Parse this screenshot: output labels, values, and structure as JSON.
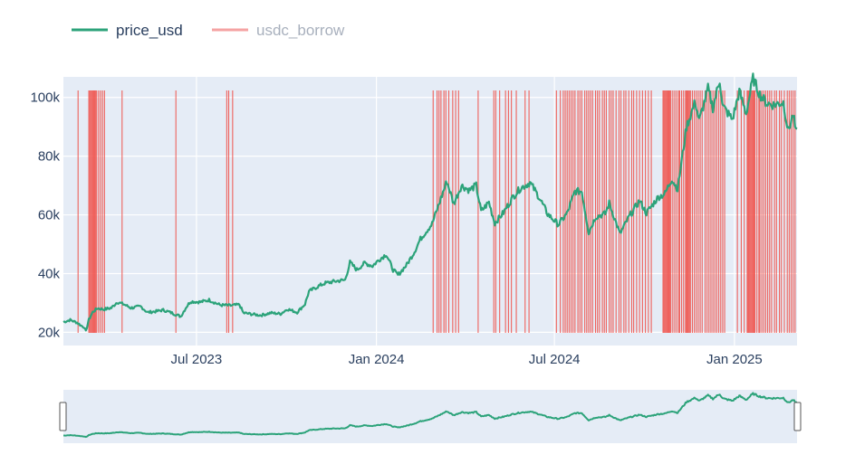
{
  "chart_data": {
    "type": "line",
    "title": "",
    "xlabel": "",
    "ylabel": "",
    "legend": {
      "position": "top-left",
      "entries": [
        {
          "name": "price_usd",
          "color": "#2ca37a",
          "style": "line"
        },
        {
          "name": "usdc_borrow",
          "color": "#f59999",
          "style": "vertical-rules",
          "faded": true
        }
      ]
    },
    "x_range": [
      "2023-02-15",
      "2025-03-06"
    ],
    "ylim": [
      15500,
      107000
    ],
    "grid": true,
    "plot_background": "#e5ecf6",
    "x_ticks": [
      {
        "date": "2023-07-01",
        "label": "Jul 2023"
      },
      {
        "date": "2024-01-01",
        "label": "Jan 2024"
      },
      {
        "date": "2024-07-01",
        "label": "Jul 2024"
      },
      {
        "date": "2025-01-01",
        "label": "Jan 2025"
      }
    ],
    "y_ticks": [
      {
        "value": 20000,
        "label": "20k"
      },
      {
        "value": 40000,
        "label": "40k"
      },
      {
        "value": 60000,
        "label": "60k"
      },
      {
        "value": 80000,
        "label": "80k"
      },
      {
        "value": 100000,
        "label": "100k"
      }
    ],
    "series": [
      {
        "name": "price_usd",
        "color": "#2ca37a",
        "points": [
          [
            "2023-02-15",
            23500
          ],
          [
            "2023-02-22",
            24200
          ],
          [
            "2023-03-01",
            23300
          ],
          [
            "2023-03-05",
            22300
          ],
          [
            "2023-03-08",
            21800
          ],
          [
            "2023-03-10",
            20300
          ],
          [
            "2023-03-13",
            24300
          ],
          [
            "2023-03-17",
            26900
          ],
          [
            "2023-03-22",
            28200
          ],
          [
            "2023-03-28",
            27800
          ],
          [
            "2023-04-05",
            28300
          ],
          [
            "2023-04-11",
            30300
          ],
          [
            "2023-04-18",
            29500
          ],
          [
            "2023-04-25",
            28300
          ],
          [
            "2023-05-05",
            28800
          ],
          [
            "2023-05-12",
            26800
          ],
          [
            "2023-05-20",
            27100
          ],
          [
            "2023-05-28",
            27600
          ],
          [
            "2023-06-05",
            26700
          ],
          [
            "2023-06-15",
            25400
          ],
          [
            "2023-06-21",
            28800
          ],
          [
            "2023-06-25",
            30500
          ],
          [
            "2023-07-05",
            30300
          ],
          [
            "2023-07-14",
            31000
          ],
          [
            "2023-07-25",
            29300
          ],
          [
            "2023-08-05",
            29100
          ],
          [
            "2023-08-14",
            29400
          ],
          [
            "2023-08-18",
            26600
          ],
          [
            "2023-08-28",
            26100
          ],
          [
            "2023-09-05",
            25800
          ],
          [
            "2023-09-15",
            26600
          ],
          [
            "2023-09-25",
            26300
          ],
          [
            "2023-10-02",
            27900
          ],
          [
            "2023-10-12",
            26800
          ],
          [
            "2023-10-20",
            29600
          ],
          [
            "2023-10-24",
            33900
          ],
          [
            "2023-11-01",
            35400
          ],
          [
            "2023-11-09",
            36700
          ],
          [
            "2023-11-20",
            37400
          ],
          [
            "2023-11-30",
            37800
          ],
          [
            "2023-12-05",
            43800
          ],
          [
            "2023-12-12",
            41300
          ],
          [
            "2023-12-20",
            43600
          ],
          [
            "2023-12-28",
            42600
          ],
          [
            "2024-01-03",
            44500
          ],
          [
            "2024-01-11",
            46600
          ],
          [
            "2024-01-18",
            41300
          ],
          [
            "2024-01-23",
            39500
          ],
          [
            "2024-02-01",
            43000
          ],
          [
            "2024-02-09",
            47500
          ],
          [
            "2024-02-15",
            51800
          ],
          [
            "2024-02-27",
            57000
          ],
          [
            "2024-03-05",
            63700
          ],
          [
            "2024-03-13",
            71500
          ],
          [
            "2024-03-20",
            63800
          ],
          [
            "2024-03-28",
            70000
          ],
          [
            "2024-04-05",
            68400
          ],
          [
            "2024-04-12",
            70000
          ],
          [
            "2024-04-17",
            61200
          ],
          [
            "2024-04-25",
            64300
          ],
          [
            "2024-05-01",
            57200
          ],
          [
            "2024-05-10",
            60800
          ],
          [
            "2024-05-20",
            66300
          ],
          [
            "2024-05-27",
            69000
          ],
          [
            "2024-06-06",
            71000
          ],
          [
            "2024-06-15",
            66200
          ],
          [
            "2024-06-24",
            60300
          ],
          [
            "2024-07-05",
            56700
          ],
          [
            "2024-07-14",
            60500
          ],
          [
            "2024-07-22",
            68000
          ],
          [
            "2024-07-29",
            68000
          ],
          [
            "2024-08-05",
            54000
          ],
          [
            "2024-08-12",
            59300
          ],
          [
            "2024-08-22",
            60400
          ],
          [
            "2024-08-26",
            64000
          ],
          [
            "2024-09-06",
            53500
          ],
          [
            "2024-09-15",
            59200
          ],
          [
            "2024-09-26",
            64800
          ],
          [
            "2024-10-03",
            60600
          ],
          [
            "2024-10-15",
            66000
          ],
          [
            "2024-10-22",
            67200
          ],
          [
            "2024-10-29",
            72300
          ],
          [
            "2024-11-04",
            68700
          ],
          [
            "2024-11-07",
            76000
          ],
          [
            "2024-11-13",
            90000
          ],
          [
            "2024-11-22",
            98500
          ],
          [
            "2024-11-26",
            92000
          ],
          [
            "2024-12-05",
            103000
          ],
          [
            "2024-12-10",
            96500
          ],
          [
            "2024-12-17",
            106000
          ],
          [
            "2024-12-20",
            97000
          ],
          [
            "2024-12-30",
            92500
          ],
          [
            "2025-01-06",
            102000
          ],
          [
            "2025-01-13",
            94500
          ],
          [
            "2025-01-20",
            106500
          ],
          [
            "2025-01-27",
            101000
          ],
          [
            "2025-02-03",
            98000
          ],
          [
            "2025-02-10",
            97500
          ],
          [
            "2025-02-20",
            98300
          ],
          [
            "2025-02-25",
            88500
          ],
          [
            "2025-03-02",
            94200
          ],
          [
            "2025-03-05",
            88000
          ]
        ]
      },
      {
        "name": "usdc_borrow",
        "color": "#f0524b",
        "type": "vertical-rules",
        "dates": [
          "2023-03-02",
          "2023-03-13",
          "2023-03-14",
          "2023-03-15",
          "2023-03-16",
          "2023-03-17",
          "2023-03-18",
          "2023-03-19",
          "2023-03-20",
          "2023-03-21",
          "2023-03-23",
          "2023-03-25",
          "2023-03-27",
          "2023-03-29",
          "2023-04-16",
          "2023-06-10",
          "2023-08-01",
          "2023-08-03",
          "2023-08-07",
          "2024-02-28",
          "2024-03-03",
          "2024-03-05",
          "2024-03-07",
          "2024-03-10",
          "2024-03-12",
          "2024-03-15",
          "2024-03-19",
          "2024-03-22",
          "2024-03-25",
          "2024-04-14",
          "2024-04-30",
          "2024-05-02",
          "2024-05-06",
          "2024-05-12",
          "2024-05-15",
          "2024-05-18",
          "2024-05-23",
          "2024-06-01",
          "2024-06-05",
          "2024-07-03",
          "2024-07-07",
          "2024-07-10",
          "2024-07-12",
          "2024-07-14",
          "2024-07-16",
          "2024-07-18",
          "2024-07-20",
          "2024-07-22",
          "2024-07-25",
          "2024-07-27",
          "2024-07-29",
          "2024-08-01",
          "2024-08-03",
          "2024-08-05",
          "2024-08-07",
          "2024-08-09",
          "2024-08-12",
          "2024-08-14",
          "2024-08-16",
          "2024-08-19",
          "2024-08-21",
          "2024-08-23",
          "2024-08-26",
          "2024-08-28",
          "2024-08-30",
          "2024-09-02",
          "2024-09-05",
          "2024-09-07",
          "2024-09-10",
          "2024-09-12",
          "2024-09-15",
          "2024-09-18",
          "2024-09-20",
          "2024-09-23",
          "2024-09-26",
          "2024-09-29",
          "2024-10-02",
          "2024-10-05",
          "2024-10-08",
          "2024-10-20",
          "2024-10-21",
          "2024-10-22",
          "2024-10-23",
          "2024-10-24",
          "2024-10-25",
          "2024-10-26",
          "2024-10-27",
          "2024-10-28",
          "2024-10-30",
          "2024-11-01",
          "2024-11-03",
          "2024-11-05",
          "2024-11-06",
          "2024-11-08",
          "2024-11-10",
          "2024-11-12",
          "2024-11-13",
          "2024-11-14",
          "2024-11-15",
          "2024-11-16",
          "2024-11-17",
          "2024-11-19",
          "2024-11-21",
          "2024-11-23",
          "2024-11-25",
          "2024-11-27",
          "2024-11-29",
          "2024-12-02",
          "2024-12-04",
          "2024-12-06",
          "2024-12-08",
          "2024-12-10",
          "2024-12-12",
          "2024-12-14",
          "2024-12-16",
          "2024-12-18",
          "2024-12-20",
          "2024-12-22",
          "2025-01-04",
          "2025-01-08",
          "2025-01-11",
          "2025-01-14",
          "2025-01-15",
          "2025-01-16",
          "2025-01-17",
          "2025-01-18",
          "2025-01-19",
          "2025-01-20",
          "2025-01-21",
          "2025-01-22",
          "2025-01-24",
          "2025-01-26",
          "2025-01-27",
          "2025-01-29",
          "2025-01-31",
          "2025-02-02",
          "2025-02-04",
          "2025-02-06",
          "2025-02-08",
          "2025-02-11",
          "2025-02-13",
          "2025-02-16",
          "2025-02-18",
          "2025-02-21",
          "2025-02-24",
          "2025-02-26",
          "2025-02-28",
          "2025-03-02",
          "2025-03-04"
        ]
      }
    ],
    "range_slider": {
      "visible": true,
      "background": "#e5ecf6"
    }
  }
}
